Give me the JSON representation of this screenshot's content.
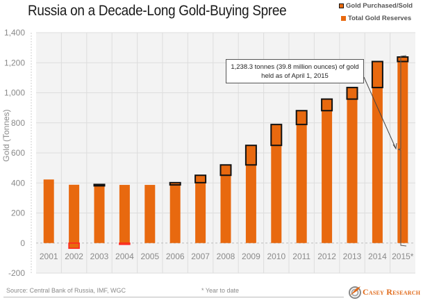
{
  "chart_data": {
    "type": "bar",
    "title": "Russia on a Decade-Long Gold-Buying Spree",
    "xlabel": "",
    "ylabel": "Gold (Tonnes)",
    "ylim": [
      -200,
      1400
    ],
    "yticks": [
      1400,
      1200,
      1000,
      800,
      600,
      400,
      200,
      0,
      -200
    ],
    "ytick_labels": [
      "1,400",
      "1,200",
      "1,000",
      "800",
      "600",
      "400",
      "200",
      "0",
      "-200"
    ],
    "grid": true,
    "legend_position": "top-right",
    "categories": [
      "2001",
      "2002",
      "2003",
      "2004",
      "2005",
      "2006",
      "2007",
      "2008",
      "2009",
      "2010",
      "2011",
      "2012",
      "2013",
      "2014",
      "2015*"
    ],
    "series": [
      {
        "name": "Total Gold Reserves",
        "color": "#e8690f",
        "values": [
          423,
          388,
          390,
          387,
          387,
          402,
          451,
          520,
          650,
          789,
          881,
          958,
          1035,
          1208,
          1238
        ]
      },
      {
        "name": "Gold Purchased/Sold",
        "color": "#e8690f",
        "border": "#111111",
        "negative_border": "#ff2020",
        "values": [
          0,
          -35,
          3,
          -3,
          0,
          15,
          49,
          69,
          130,
          139,
          92,
          77,
          77,
          173,
          30
        ]
      }
    ],
    "annotation": {
      "text_line1": "1,238.3 tonnes (39.8 million ounces) of gold",
      "text_line2": "held as of April 1, 2015",
      "target": "2015*"
    }
  },
  "legend": {
    "purchased": "Gold Purchased/Sold",
    "total": "Total Gold Reserves"
  },
  "footer": {
    "source": "Source: Central Bank of Russia, IMF, WGC",
    "note": "* Year to date",
    "brand": "Casey Research"
  },
  "colors": {
    "bar": "#e8690f",
    "purchase_border": "#111111",
    "sold_border": "#ff2020",
    "plot_bg": "#f3f3f3",
    "grid": "#dddddd"
  }
}
